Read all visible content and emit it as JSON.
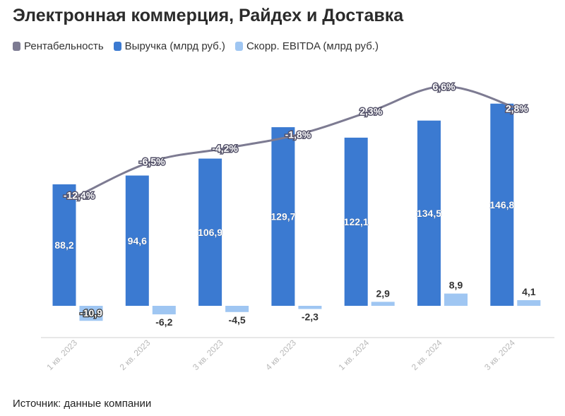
{
  "title": "Электронная коммерция, Райдех и Доставка",
  "source": "Источник: данные компании",
  "colors": {
    "margin_line": "#7d7b92",
    "revenue": "#3b7ad1",
    "ebitda": "#9fc6f2",
    "axis": "#cfcfcf",
    "tick_text": "#b8b8b8"
  },
  "chart_data": {
    "type": "bar",
    "categories": [
      "1 кв. 2023",
      "2 кв. 2023",
      "3 кв. 2023",
      "4 кв. 2023",
      "1 кв. 2024",
      "2 кв. 2024",
      "3 кв. 2024"
    ],
    "series": [
      {
        "name": "Выручка (млрд руб.)",
        "type": "bar",
        "values": [
          88.2,
          94.6,
          106.9,
          129.7,
          122.1,
          134.5,
          146.8
        ],
        "labels": [
          "88,2",
          "94,6",
          "106,9",
          "129,7",
          "122,1",
          "134,5",
          "146,8"
        ]
      },
      {
        "name": "Скорр. EBITDA (млрд руб.)",
        "type": "bar",
        "values": [
          -10.9,
          -6.2,
          -4.5,
          -2.3,
          2.9,
          8.9,
          4.1
        ],
        "labels": [
          "-10,9",
          "-6,2",
          "-4,5",
          "-2,3",
          "2,9",
          "8,9",
          "4,1"
        ]
      },
      {
        "name": "Рентабельность",
        "type": "line",
        "values": [
          -12.4,
          -6.5,
          -4.2,
          -1.8,
          2.3,
          6.6,
          2.8
        ],
        "labels": [
          "-12,4%",
          "-6,5%",
          "-4,2%",
          "-1,8%",
          "2,3%",
          "6,6%",
          "2,8%"
        ]
      }
    ],
    "grid": false,
    "legend": "top-left"
  }
}
